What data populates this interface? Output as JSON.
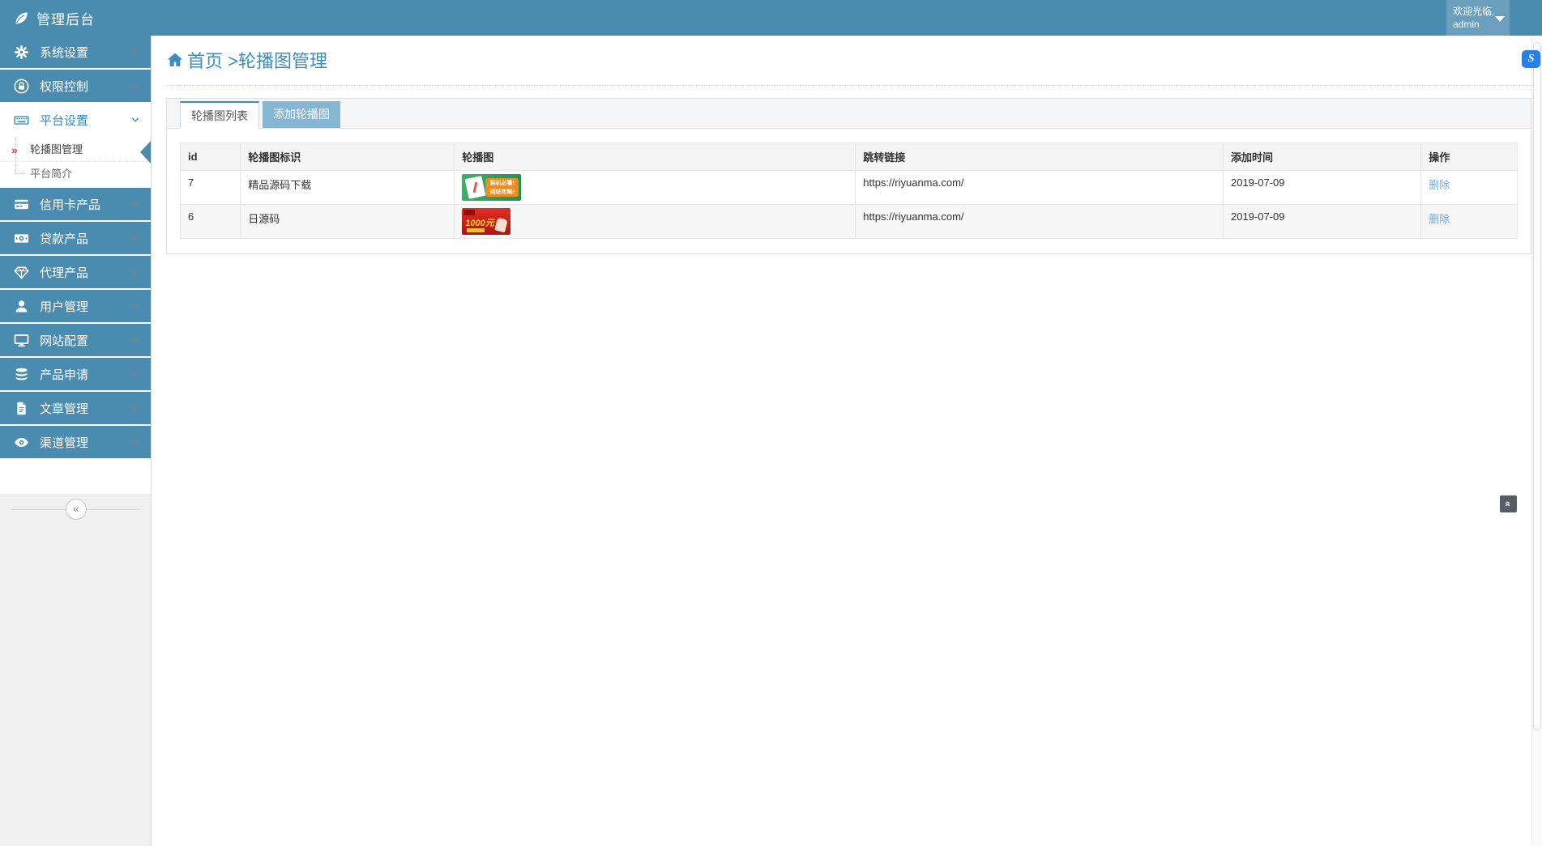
{
  "header": {
    "title": "管理后台",
    "logo_icon": "leaf-icon",
    "welcome_line1": "欢迎光临,",
    "welcome_line2": "admin"
  },
  "sidebar": {
    "menu": [
      {
        "label": "系统设置",
        "icon": "gear-icon"
      },
      {
        "label": "权限控制",
        "icon": "lock-icon"
      },
      {
        "label": "平台设置",
        "icon": "keyboard-icon",
        "expanded": true,
        "children": [
          {
            "label": "轮播图管理",
            "active": true,
            "marker": "»"
          },
          {
            "label": "平台简介",
            "active": false
          }
        ]
      },
      {
        "label": "信用卡产品",
        "icon": "credit-card-icon"
      },
      {
        "label": "贷款产品",
        "icon": "banknote-icon"
      },
      {
        "label": "代理产品",
        "icon": "gem-icon"
      },
      {
        "label": "用户管理",
        "icon": "user-icon"
      },
      {
        "label": "网站配置",
        "icon": "monitor-icon"
      },
      {
        "label": "产品申请",
        "icon": "database-icon"
      },
      {
        "label": "文章管理",
        "icon": "document-icon"
      },
      {
        "label": "渠道管理",
        "icon": "eye-icon"
      }
    ],
    "collapse_glyph": "«"
  },
  "breadcrumb": {
    "home_icon": "home-icon",
    "home": "首页",
    "rest": ">轮播图管理"
  },
  "ext_button_glyph": "S",
  "tabs": [
    {
      "label": "轮播图列表",
      "active": true
    },
    {
      "label": "添加轮播图",
      "active": false
    }
  ],
  "table": {
    "columns": [
      "id",
      "轮播图标识",
      "轮播图",
      "跳转链接",
      "添加时间",
      "操作"
    ],
    "rows": [
      {
        "id": "7",
        "title": "精品源码下载",
        "banner": {
          "kind": "green-doc-promo",
          "line1": "装机必看!",
          "line2": "网站攻略!"
        },
        "link": "https://riyuanma.com/",
        "date": "2019-07-09",
        "action": "删除"
      },
      {
        "id": "6",
        "title": "日源码",
        "banner": {
          "kind": "red-cash-promo",
          "amount": "1000元"
        },
        "link": "https://riyuanma.com/",
        "date": "2019-07-09",
        "action": "删除"
      }
    ]
  },
  "colors": {
    "accent_blue": "#4a8cb0",
    "link_blue": "#3b8dbd",
    "inactive_tab_blue": "#85b6d4",
    "delete_link_blue": "#7aa9d6",
    "active_marker_red": "#d9433e"
  }
}
